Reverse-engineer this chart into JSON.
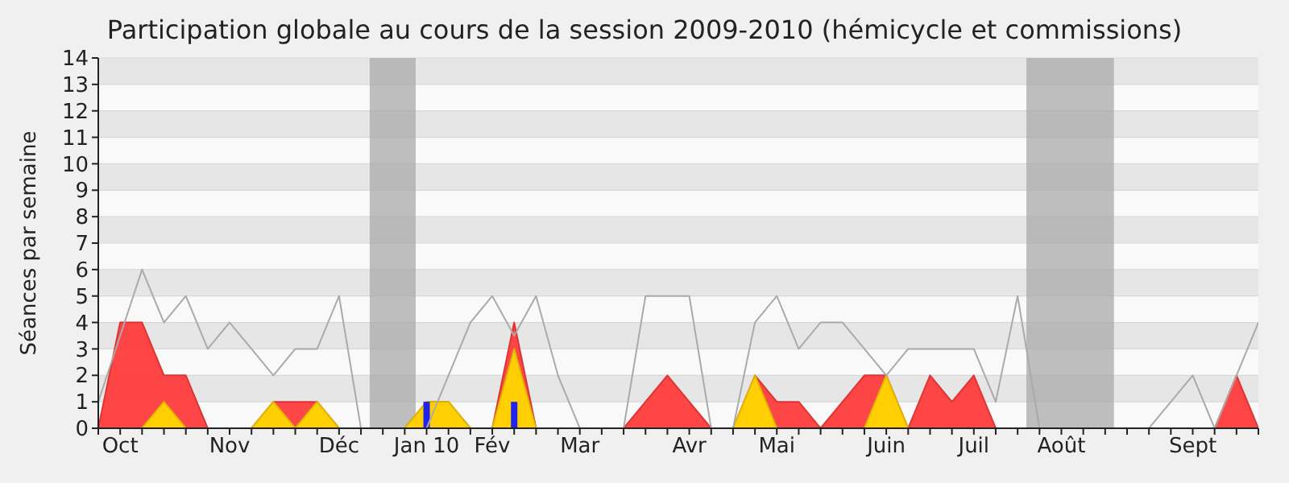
{
  "chart_data": {
    "type": "line",
    "title": "Participation globale au cours de la session 2009-2010 (hémicycle et commissions)",
    "ylabel": "Séances par semaine",
    "categories": [
      null,
      "Oct",
      null,
      null,
      null,
      null,
      "Nov",
      null,
      null,
      null,
      null,
      "Déc",
      null,
      null,
      null,
      "Jan 10",
      null,
      null,
      "Fév",
      null,
      null,
      null,
      "Mar",
      null,
      null,
      null,
      null,
      "Avr",
      null,
      null,
      null,
      "Mai",
      null,
      null,
      null,
      null,
      "Juin",
      null,
      null,
      null,
      "Juil",
      null,
      null,
      null,
      "Août",
      null,
      null,
      null,
      null,
      null,
      "Sept",
      null,
      null,
      null
    ],
    "ylim": [
      0,
      14
    ],
    "yticks": [
      0,
      1,
      2,
      3,
      4,
      5,
      6,
      7,
      8,
      9,
      10,
      11,
      12,
      13,
      14
    ],
    "grid": "y",
    "series": [
      {
        "color": "#aaaaaa",
        "values": [
          1,
          3.5,
          6,
          4,
          5,
          3,
          4,
          3,
          2,
          3,
          3,
          5,
          0,
          0,
          0,
          0,
          2,
          4,
          5,
          3.5,
          5,
          2,
          0,
          0,
          0,
          5,
          5,
          5,
          0,
          0,
          4,
          5,
          3,
          4,
          4,
          3,
          2,
          3,
          3,
          3,
          3,
          1,
          5,
          0,
          0,
          0,
          0,
          0,
          0,
          1,
          2,
          0,
          2,
          4
        ]
      },
      {
        "type": "area",
        "color": "#ff3c3c",
        "values": [
          0,
          4,
          4,
          2,
          2,
          0,
          0,
          0,
          1,
          1,
          1,
          0,
          0,
          0,
          0,
          1,
          1,
          0,
          0,
          4,
          0,
          0,
          0,
          0,
          0,
          1,
          2,
          1,
          0,
          0,
          2,
          1,
          1,
          0,
          1,
          2,
          2,
          0,
          2,
          1,
          2,
          0,
          0,
          0,
          0,
          0,
          0,
          0,
          0,
          0,
          0,
          0,
          2,
          0
        ]
      },
      {
        "type": "area",
        "color": "#ffd700",
        "values": [
          0,
          0,
          0,
          1,
          0,
          0,
          0,
          0,
          1,
          0,
          1,
          0,
          0,
          0,
          0,
          1,
          1,
          0,
          0,
          3,
          0,
          0,
          0,
          0,
          0,
          0,
          0,
          0,
          0,
          0,
          2,
          0,
          0,
          0,
          0,
          0,
          2,
          0,
          0,
          0,
          0,
          0,
          0,
          0,
          0,
          0,
          0,
          0,
          0,
          0,
          0,
          0,
          0,
          0
        ]
      },
      {
        "type": "bar",
        "color": "#2222ee",
        "values": [
          null,
          null,
          null,
          null,
          null,
          null,
          null,
          null,
          null,
          null,
          null,
          null,
          null,
          null,
          null,
          1,
          null,
          null,
          null,
          1,
          null,
          null,
          null,
          null,
          null,
          null,
          null,
          null,
          null,
          null,
          null,
          null,
          null,
          null,
          null,
          null,
          null,
          null,
          null,
          null,
          null,
          null,
          null,
          null,
          null,
          null,
          null,
          null,
          null,
          null,
          null,
          null,
          null,
          null
        ]
      }
    ]
  }
}
